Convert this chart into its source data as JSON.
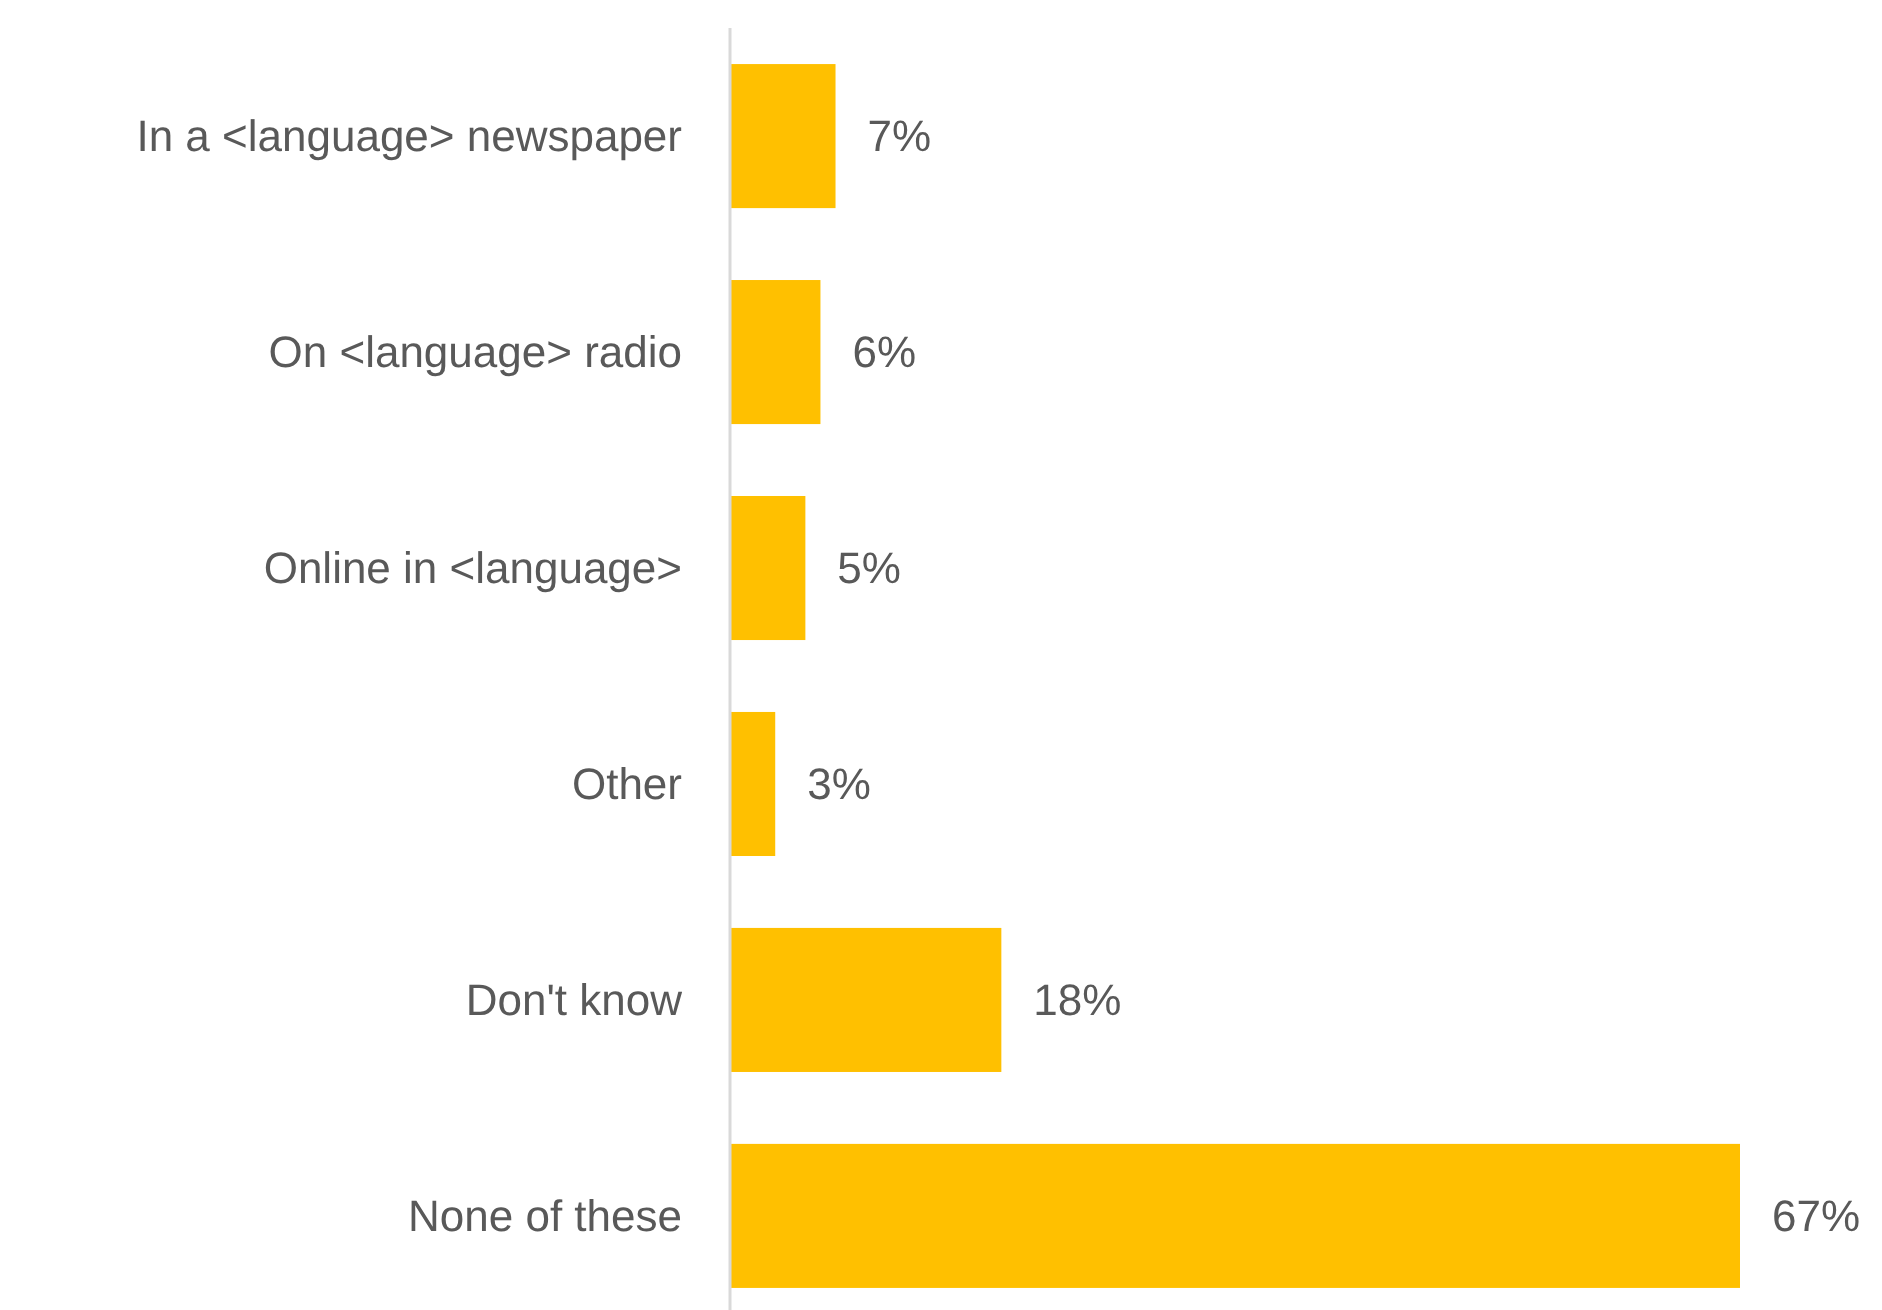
{
  "chart_data": {
    "type": "bar",
    "orientation": "horizontal",
    "categories": [
      "In a <language> newspaper",
      "On <language> radio",
      "Online in <language>",
      "Other",
      "Don't know",
      "None of these"
    ],
    "values": [
      7,
      6,
      5,
      3,
      18,
      67
    ],
    "color": "#ffc000",
    "value_labels": [
      "7%",
      "6%",
      "5%",
      "3%",
      "18%",
      "67%"
    ]
  }
}
